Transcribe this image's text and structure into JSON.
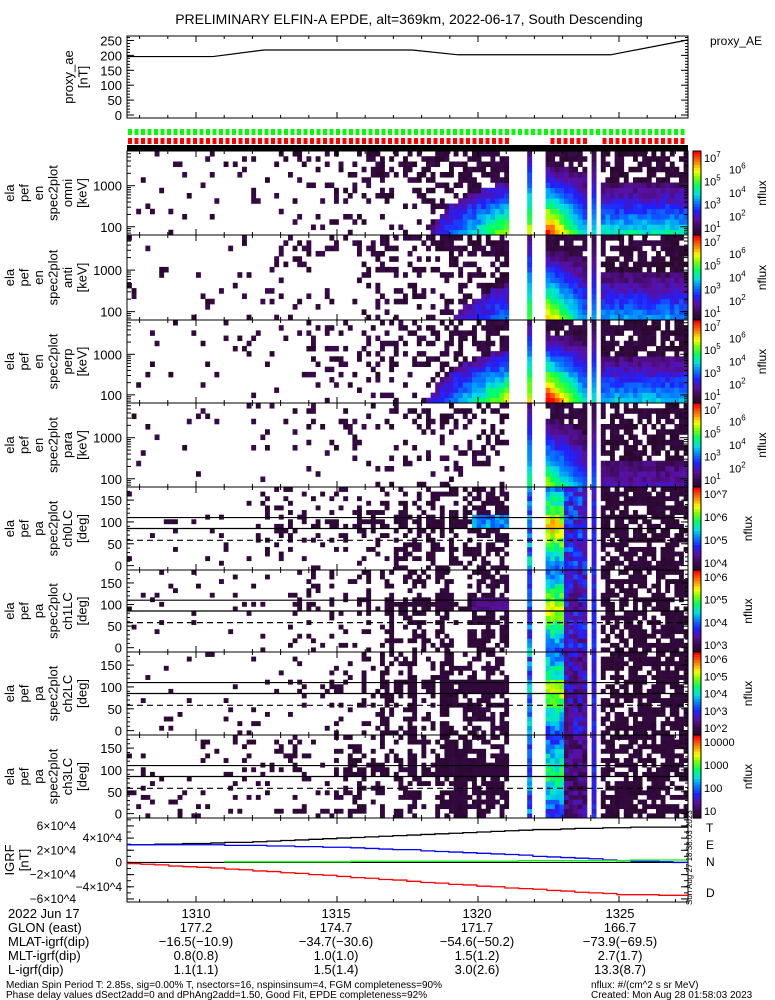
{
  "title": "PRELIMINARY ELFIN-A EPDE, alt=369km, 2022-06-17, South Descending",
  "chart_data": [
    {
      "type": "line",
      "name": "proxy_ae",
      "ylabel_lines": [
        "proxy_ae",
        "[nT]"
      ],
      "legend": "proxy_AE",
      "ylim": [
        -10,
        265
      ],
      "yticks": [
        0,
        50,
        100,
        150,
        200,
        250
      ],
      "x_units": "minutes after 13:00 UT",
      "xlim": [
        7.55,
        27.45
      ],
      "series": [
        {
          "name": "proxy_AE",
          "color": "#000000",
          "x": [
            7.55,
            10.6,
            12.4,
            17.66,
            19.3,
            24.7,
            27.45
          ],
          "y": [
            196,
            196,
            218,
            218,
            202,
            202,
            252
          ]
        }
      ]
    },
    {
      "type": "table",
      "name": "quality_flags",
      "rows": [
        {
          "color": "#00ff00",
          "segments": [
            [
              7.55,
              27.45
            ]
          ]
        },
        {
          "color": "#ff0000",
          "segments": [
            [
              7.55,
              21.13
            ],
            [
              22.4,
              23.85
            ],
            [
              24.3,
              27.45
            ]
          ]
        },
        {
          "color": "#000000",
          "segments": [
            [
              7.55,
              27.45
            ]
          ]
        }
      ]
    },
    {
      "type": "heatmap",
      "name": "energy_spectrograms",
      "x_units": "minutes after 13:00 UT",
      "xlim": [
        7.55,
        27.45
      ],
      "data_gaps": [
        [
          21.13,
          21.7
        ],
        [
          21.88,
          22.45
        ],
        [
          23.79,
          23.97
        ],
        [
          24.18,
          24.36
        ]
      ],
      "ylim": [
        63,
        7000
      ],
      "yscale": "log",
      "yticks": [
        100,
        1000
      ],
      "colorbar_label": "nflux",
      "panels": [
        {
          "ylabel_lines": [
            "ela",
            "pef",
            "en",
            "spec2plot",
            "omni",
            "[keV]"
          ],
          "cbar_ticks": [
            "7",
            "6",
            "5",
            "4",
            "3",
            "2",
            "1"
          ]
        },
        {
          "ylabel_lines": [
            "ela",
            "pef",
            "en",
            "spec2plot",
            "anti",
            "[keV]"
          ],
          "cbar_ticks": [
            "7",
            "6",
            "5",
            "4",
            "3",
            "2",
            "1"
          ]
        },
        {
          "ylabel_lines": [
            "ela",
            "pef",
            "en",
            "spec2plot",
            "perp",
            "[keV]"
          ],
          "cbar_ticks": [
            "7",
            "6",
            "5",
            "4",
            "3",
            "2",
            "1"
          ]
        },
        {
          "ylabel_lines": [
            "ela",
            "pef",
            "en",
            "spec2plot",
            "para",
            "[keV]"
          ],
          "cbar_ticks": [
            "7",
            "6",
            "5",
            "4",
            "3",
            "2",
            "1"
          ]
        }
      ]
    },
    {
      "type": "heatmap",
      "name": "pitch_angle_spectrograms",
      "ylim": [
        -10,
        180
      ],
      "yticks": [
        0,
        50,
        100,
        150
      ],
      "reference_lines_deg": {
        "solid": [
          110,
          85
        ],
        "dashed": [
          58
        ]
      },
      "colorbar_label": "nflux",
      "panels": [
        {
          "ylabel_lines": [
            "ela",
            "pef",
            "pa",
            "spec2plot",
            "ch0LC",
            "[deg]"
          ],
          "cbar_ticks": [
            "10^7",
            "10^6",
            "10^5",
            "10^4"
          ]
        },
        {
          "ylabel_lines": [
            "ela",
            "pef",
            "pa",
            "spec2plot",
            "ch1LC",
            "[deg]"
          ],
          "cbar_ticks": [
            "10^6",
            "10^5",
            "10^4",
            "10^3"
          ]
        },
        {
          "ylabel_lines": [
            "ela",
            "pef",
            "pa",
            "spec2plot",
            "ch2LC",
            "[deg]"
          ],
          "cbar_ticks": [
            "10^6",
            "10^5",
            "10^4",
            "10^3",
            "10^2"
          ]
        },
        {
          "ylabel_lines": [
            "ela",
            "pef",
            "pa",
            "spec2plot",
            "ch3LC",
            "[deg]"
          ],
          "cbar_ticks": [
            "10000",
            "1000",
            "100",
            "10"
          ]
        }
      ]
    },
    {
      "type": "line",
      "name": "igrf",
      "ylabel_lines": [
        "IGRF",
        "[nT]"
      ],
      "ylim": [
        -65000,
        73000
      ],
      "yticks": [
        60000,
        40000,
        20000,
        0,
        -20000,
        -40000,
        -60000
      ],
      "ytick_labels": [
        "6×10^4",
        "4×10^4",
        "2×10^4",
        "0",
        "−2×10^4",
        "−4×10^4",
        "−6×10^4"
      ],
      "series": [
        {
          "name": "T",
          "color": "#000000",
          "x": [
            7.55,
            10,
            12.5,
            15,
            17.5,
            20,
            22.5,
            25,
            27.45
          ],
          "y": [
            29000,
            31000,
            35000,
            40000,
            45500,
            50500,
            54500,
            57500,
            58500
          ]
        },
        {
          "name": "N",
          "color": "#0000ff",
          "x": [
            7.55,
            10,
            12.5,
            15,
            17.5,
            20,
            22.5,
            25,
            27.45
          ],
          "y": [
            29000,
            29000,
            27500,
            25000,
            20500,
            15000,
            9000,
            3000,
            -500
          ]
        },
        {
          "name": "E",
          "color": "#00ff00",
          "x": [
            11,
            12.5,
            15,
            17.5,
            20,
            22.5,
            25,
            27.45
          ],
          "y": [
            1000,
            1200,
            1500,
            1800,
            2200,
            3000,
            3500,
            4500
          ]
        },
        {
          "name": "D",
          "color": "#ff0000",
          "x": [
            7.55,
            10,
            12.5,
            15,
            17.5,
            20,
            22.5,
            25,
            27.45
          ],
          "y": [
            -2000,
            -8000,
            -15000,
            -23000,
            -31000,
            -39000,
            -46000,
            -53000,
            -54000
          ]
        }
      ]
    }
  ],
  "xaxis": {
    "ticks": [
      10,
      15,
      20,
      25
    ],
    "rows": [
      {
        "label": "2022 Jun 17",
        "values": [
          "1310",
          "1315",
          "1320",
          "1325"
        ]
      },
      {
        "label": "GLON (east)",
        "values": [
          "177.2",
          "174.7",
          "171.7",
          "166.7"
        ]
      },
      {
        "label": "MLAT-igrf(dip)",
        "values": [
          "−16.5(−10.9)",
          "−34.7(−30.6)",
          "−54.6(−50.2)",
          "−73.9(−69.5)"
        ]
      },
      {
        "label": "MLT-igrf(dip)",
        "values": [
          "0.8(0.8)",
          "1.0(1.0)",
          "1.5(1.2)",
          "2.7(1.7)"
        ]
      },
      {
        "label": "L-igrf(dip)",
        "values": [
          "1.1(1.1)",
          "1.5(1.4)",
          "3.0(2.6)",
          "13.3(8.7)"
        ]
      }
    ]
  },
  "footer": {
    "line1": "Median Spin Period T: 2.85s, sig=0.00% T, nsectors=16, nspinsinsum=4, FGM completeness=90%",
    "line2": "Phase delay values dSect2add=0 and dPhAng2add=1.50, Good Fit, EPDE completeness=92%",
    "units": "nflux: #/(cm^2 s sr MeV)",
    "created": "Created: Mon Aug 28 01:58:03 2023"
  },
  "side_stamp": "Sun Aug 27 18:38:03 2023"
}
